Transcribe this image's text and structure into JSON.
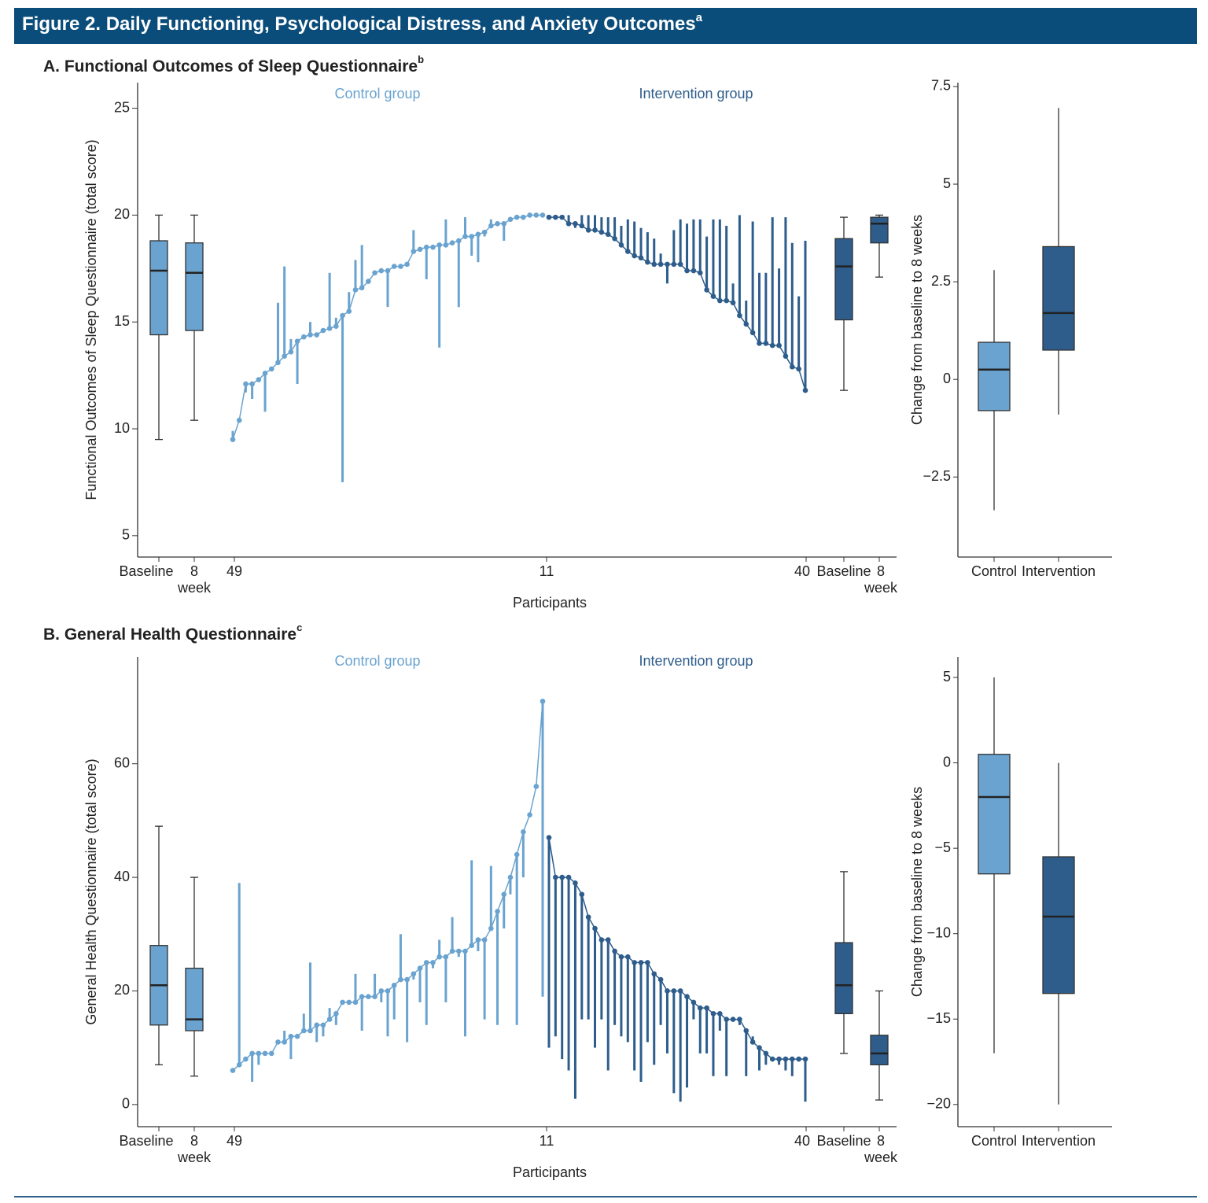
{
  "header": {
    "title": "Figure 2. Daily Functioning, Psychological Distress, and Anxiety Outcomes",
    "title_sup": "a"
  },
  "chart_data": [
    {
      "type": "participant_box",
      "title": "A. Functional Outcomes of Sleep Questionnaire",
      "title_sup": "b",
      "y_label": "Functional Outcomes of Sleep Questionnaire (total score)",
      "x_label": "Participants",
      "x_tick_labels": [
        "Baseline",
        "8 week",
        "49",
        "11",
        "40",
        "Baseline",
        "8 week"
      ],
      "ylim": [
        4,
        26.2
      ],
      "yticks": [
        5,
        10,
        15,
        20,
        25
      ],
      "series": [
        {
          "name": "Control group",
          "color": "#6aa3cf",
          "values": [
            9.5,
            10.4,
            12.1,
            12.1,
            12.3,
            12.6,
            12.8,
            13.1,
            13.4,
            13.6,
            14.1,
            14.3,
            14.4,
            14.4,
            14.6,
            14.7,
            14.8,
            15.3,
            15.5,
            16.5,
            16.6,
            16.9,
            17.3,
            17.4,
            17.4,
            17.6,
            17.6,
            17.7,
            18.3,
            18.4,
            18.5,
            18.5,
            18.6,
            18.6,
            18.7,
            18.8,
            19.0,
            19.0,
            19.1,
            19.2,
            19.5,
            19.6,
            19.6,
            19.8,
            19.9,
            19.9,
            20.0,
            20.0,
            20.0
          ],
          "ends": [
            9.9,
            10.4,
            11.7,
            11.4,
            12.3,
            10.8,
            12.8,
            15.9,
            17.6,
            14.2,
            12.1,
            14.3,
            15.0,
            14.4,
            14.6,
            17.3,
            15.2,
            7.5,
            16.4,
            17.9,
            18.6,
            16.9,
            17.3,
            17.4,
            15.7,
            17.6,
            17.6,
            17.7,
            19.3,
            18.4,
            17.0,
            18.5,
            13.8,
            19.8,
            18.7,
            15.7,
            19.9,
            18.1,
            17.8,
            19.0,
            19.8,
            19.6,
            18.8,
            19.8,
            19.9,
            19.9,
            20.0,
            20.0,
            20.0
          ],
          "boxes": [
            {
              "whisker_low": 9.5,
              "q1": 14.4,
              "median": 17.4,
              "q3": 18.8,
              "whisker_high": 20
            },
            {
              "whisker_low": 10.4,
              "q1": 14.6,
              "median": 17.3,
              "q3": 18.7,
              "whisker_high": 20
            }
          ]
        },
        {
          "name": "Intervention group",
          "color": "#2e5d8c",
          "values": [
            19.9,
            19.9,
            19.9,
            19.6,
            19.6,
            19.5,
            19.3,
            19.3,
            19.2,
            19.1,
            18.9,
            18.6,
            18.3,
            18.1,
            18.0,
            17.8,
            17.7,
            17.7,
            17.7,
            17.7,
            17.7,
            17.4,
            17.4,
            17.3,
            16.5,
            16.2,
            16.0,
            16.0,
            15.9,
            15.3,
            14.9,
            14.5,
            14.0,
            14.0,
            13.9,
            13.9,
            13.4,
            12.9,
            12.8,
            11.8
          ],
          "ends": [
            19.9,
            19.9,
            19.9,
            20.0,
            19.4,
            20.0,
            20.0,
            20.0,
            19.9,
            19.9,
            19.9,
            19.5,
            19.8,
            19.7,
            19.4,
            19.2,
            18.9,
            18.2,
            16.8,
            19.3,
            19.8,
            19.6,
            19.8,
            19.8,
            19.0,
            19.8,
            19.8,
            19.5,
            16.8,
            20.0,
            16.0,
            19.7,
            17.3,
            17.3,
            19.9,
            17.5,
            19.9,
            18.7,
            16.2,
            18.8
          ],
          "boxes": [
            {
              "whisker_low": 11.8,
              "q1": 15.1,
              "median": 17.6,
              "q3": 18.9,
              "whisker_high": 19.9
            },
            {
              "whisker_low": 17.1,
              "q1": 18.7,
              "median": 19.6,
              "q3": 19.9,
              "whisker_high": 20
            }
          ]
        }
      ]
    },
    {
      "type": "box",
      "y_label": "Change from baseline to 8 weeks",
      "categories": [
        "Control",
        "Intervention"
      ],
      "colors": [
        "#6aa3cf",
        "#2e5d8c"
      ],
      "ylim": [
        -4.55,
        7.6
      ],
      "yticks": [
        {
          "value": -2.5,
          "label": "−2.5"
        },
        0,
        2.5,
        5,
        7.5
      ],
      "boxes": [
        {
          "whisker_low": -3.35,
          "q1": -0.8,
          "median": 0.25,
          "q3": 0.95,
          "whisker_high": 2.8
        },
        {
          "whisker_low": -0.9,
          "q1": 0.75,
          "median": 1.7,
          "q3": 3.4,
          "whisker_high": 6.95
        }
      ]
    },
    {
      "type": "participant_box",
      "title": "B. General Health Questionnaire",
      "title_sup": "c",
      "y_label": "General Health Questionnaire (total score)",
      "x_label": "Participants",
      "x_tick_labels": [
        "Baseline",
        "8 week",
        "49",
        "11",
        "40",
        "Baseline",
        "8 week"
      ],
      "ylim": [
        -3.9,
        78.8
      ],
      "yticks": [
        0,
        20,
        40,
        60
      ],
      "series": [
        {
          "name": "Control group",
          "color": "#6aa3cf",
          "values": [
            6,
            7,
            8,
            9,
            9,
            9,
            9,
            11,
            11,
            12,
            12,
            13,
            13,
            14,
            14,
            15,
            16,
            18,
            18,
            18,
            19,
            19,
            19,
            20,
            20,
            21,
            22,
            22,
            23,
            24,
            25,
            25,
            26,
            26,
            27,
            27,
            27,
            28,
            29,
            29,
            31,
            34,
            37,
            40,
            44,
            48,
            51,
            56,
            71
          ],
          "ends": [
            6,
            39,
            8,
            4,
            7,
            9,
            9,
            11,
            13,
            8,
            12,
            16,
            25,
            11,
            12,
            17,
            14,
            18,
            18,
            23,
            13,
            19,
            23,
            18,
            12,
            15,
            30,
            11,
            22,
            18,
            14,
            24,
            29,
            18,
            33,
            26,
            12,
            43,
            27,
            15,
            42,
            14,
            31,
            37,
            14,
            40,
            51,
            56,
            19
          ],
          "boxes": [
            {
              "whisker_low": 7,
              "q1": 14,
              "median": 21,
              "q3": 28,
              "whisker_high": 49
            },
            {
              "whisker_low": 5,
              "q1": 13,
              "median": 15,
              "q3": 24,
              "whisker_high": 40
            }
          ]
        },
        {
          "name": "Intervention group",
          "color": "#2e5d8c",
          "values": [
            47,
            40,
            40,
            40,
            39,
            37,
            33,
            31,
            29,
            29,
            27,
            26,
            26,
            25,
            25,
            25,
            23,
            22,
            20,
            20,
            20,
            19,
            18,
            17,
            17,
            16,
            16,
            15,
            15,
            15,
            13,
            11,
            10,
            9,
            8,
            8,
            8,
            8,
            8,
            8
          ],
          "ends": [
            10,
            12,
            8,
            6,
            1,
            15,
            15,
            10,
            15,
            6,
            14,
            12,
            11,
            6,
            4,
            11,
            7,
            14,
            9,
            2,
            0.5,
            3,
            15,
            9,
            9,
            5,
            13,
            5,
            15,
            14,
            5,
            12,
            6,
            7,
            8,
            7,
            6,
            5,
            8,
            0.5
          ],
          "boxes": [
            {
              "whisker_low": 9,
              "q1": 16,
              "median": 21,
              "q3": 28.5,
              "whisker_high": 41
            },
            {
              "whisker_low": 0.8,
              "q1": 7,
              "median": 9,
              "q3": 12.2,
              "whisker_high": 20
            }
          ]
        }
      ]
    },
    {
      "type": "box",
      "y_label": "Change from baseline to 8 weeks",
      "categories": [
        "Control",
        "Intervention"
      ],
      "colors": [
        "#6aa3cf",
        "#2e5d8c"
      ],
      "ylim": [
        -21.3,
        6.2
      ],
      "yticks": [
        {
          "value": -20,
          "label": "−20"
        },
        {
          "value": -15,
          "label": "−15"
        },
        {
          "value": -10,
          "label": "−10"
        },
        {
          "value": -5,
          "label": "−5"
        },
        0,
        5
      ],
      "boxes": [
        {
          "whisker_low": -17,
          "q1": -6.5,
          "median": -2,
          "q3": 0.5,
          "whisker_high": 5
        },
        {
          "whisker_low": -20,
          "q1": -13.5,
          "median": -9,
          "q3": -5.5,
          "whisker_high": 0
        }
      ]
    }
  ]
}
